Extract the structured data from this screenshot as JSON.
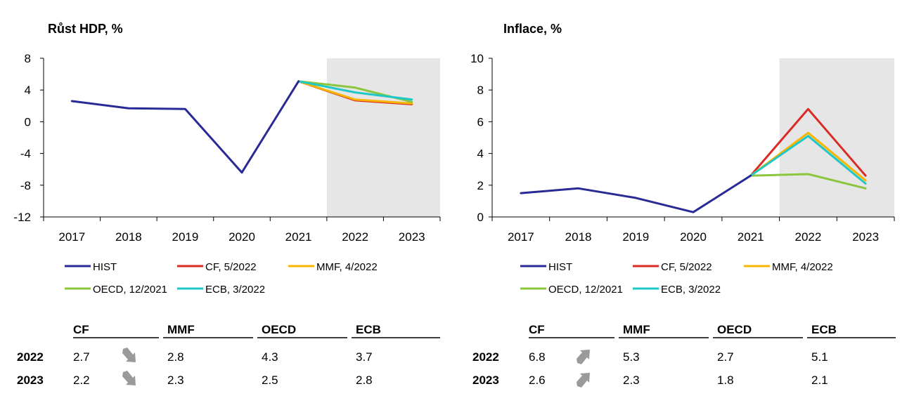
{
  "colors": {
    "HIST": "#2a2a96",
    "CF": "#d92b22",
    "MMF": "#f7b500",
    "OECD": "#8cc63f",
    "ECB": "#1fc7c7",
    "forecast_shade": "#e6e6e6",
    "arrow": "#9a9a9a"
  },
  "chart_data": [
    {
      "type": "line",
      "title": "Růst HDP, %",
      "categories": [
        "2017",
        "2018",
        "2019",
        "2020",
        "2021",
        "2022",
        "2023"
      ],
      "ylim": [
        -12,
        8
      ],
      "yticks": [
        8,
        4,
        0,
        -4,
        -8,
        -12
      ],
      "forecast_shaded_from": "2022",
      "grid": false,
      "series": [
        {
          "name": "HIST",
          "x": [
            "2017",
            "2018",
            "2019",
            "2020",
            "2021"
          ],
          "values": [
            2.6,
            1.7,
            1.6,
            -6.4,
            5.1
          ]
        },
        {
          "name": "CF, 5/2022",
          "x": [
            "2021",
            "2022",
            "2023"
          ],
          "values": [
            5.1,
            2.7,
            2.2
          ]
        },
        {
          "name": "MMF, 4/2022",
          "x": [
            "2021",
            "2022",
            "2023"
          ],
          "values": [
            5.1,
            2.8,
            2.3
          ]
        },
        {
          "name": "OECD, 12/2021",
          "x": [
            "2021",
            "2022",
            "2023"
          ],
          "values": [
            5.1,
            4.3,
            2.5
          ]
        },
        {
          "name": "ECB, 3/2022",
          "x": [
            "2021",
            "2022",
            "2023"
          ],
          "values": [
            5.1,
            3.7,
            2.8
          ]
        }
      ],
      "table": {
        "headers": [
          "CF",
          "MMF",
          "OECD",
          "ECB"
        ],
        "rows": [
          {
            "year": "2022",
            "values": [
              "2.7",
              "2.8",
              "4.3",
              "3.7"
            ],
            "arrow": "down"
          },
          {
            "year": "2023",
            "values": [
              "2.2",
              "2.3",
              "2.5",
              "2.8"
            ],
            "arrow": "down"
          }
        ]
      }
    },
    {
      "type": "line",
      "title": "Inflace, %",
      "categories": [
        "2017",
        "2018",
        "2019",
        "2020",
        "2021",
        "2022",
        "2023"
      ],
      "ylim": [
        0,
        10
      ],
      "yticks": [
        10,
        8,
        6,
        4,
        2,
        0
      ],
      "forecast_shaded_from": "2022",
      "grid": false,
      "series": [
        {
          "name": "HIST",
          "x": [
            "2017",
            "2018",
            "2019",
            "2020",
            "2021"
          ],
          "values": [
            1.5,
            1.8,
            1.2,
            0.3,
            2.6
          ]
        },
        {
          "name": "CF, 5/2022",
          "x": [
            "2021",
            "2022",
            "2023"
          ],
          "values": [
            2.6,
            6.8,
            2.6
          ]
        },
        {
          "name": "MMF, 4/2022",
          "x": [
            "2021",
            "2022",
            "2023"
          ],
          "values": [
            2.6,
            5.3,
            2.3
          ]
        },
        {
          "name": "OECD, 12/2021",
          "x": [
            "2021",
            "2022",
            "2023"
          ],
          "values": [
            2.6,
            2.7,
            1.8
          ]
        },
        {
          "name": "ECB, 3/2022",
          "x": [
            "2021",
            "2022",
            "2023"
          ],
          "values": [
            2.6,
            5.1,
            2.1
          ]
        }
      ],
      "table": {
        "headers": [
          "CF",
          "MMF",
          "OECD",
          "ECB"
        ],
        "rows": [
          {
            "year": "2022",
            "values": [
              "6.8",
              "5.3",
              "2.7",
              "5.1"
            ],
            "arrow": "up"
          },
          {
            "year": "2023",
            "values": [
              "2.6",
              "2.3",
              "1.8",
              "2.1"
            ],
            "arrow": "up"
          }
        ]
      }
    }
  ]
}
